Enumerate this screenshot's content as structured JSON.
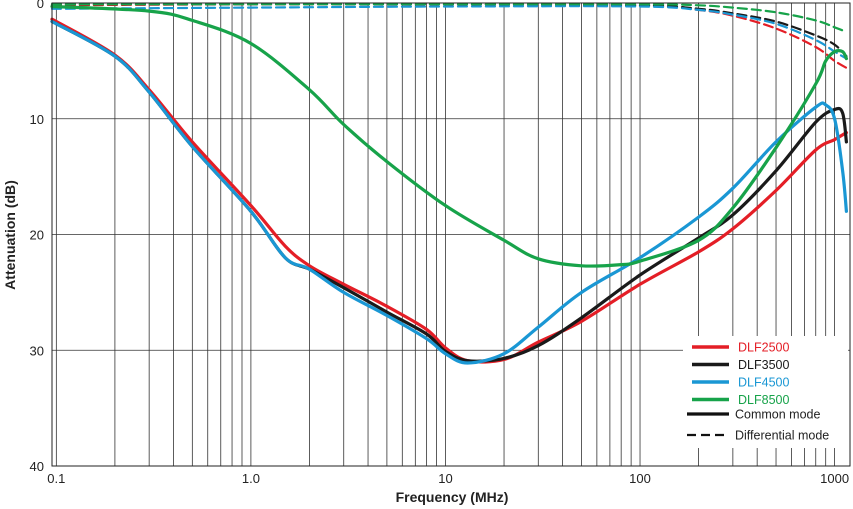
{
  "chart_data": {
    "type": "line",
    "xlabel": "Frequency (MHz)",
    "ylabel": "Attenuation (dB)",
    "x_scale": "log",
    "xlim": [
      0.095,
      1200
    ],
    "ylim": [
      0,
      40
    ],
    "y_inverted": true,
    "grid": true,
    "x_tick_labels": [
      "0.1",
      "1.0",
      "10",
      "100",
      "1000"
    ],
    "x_tick_values": [
      0.1,
      1,
      10,
      100,
      1000
    ],
    "y_tick_labels": [
      "0",
      "10",
      "20",
      "30",
      "40"
    ],
    "y_tick_values": [
      0,
      10,
      20,
      30,
      40
    ],
    "legend_position": "bottom-right",
    "series": [
      {
        "name": "DLF2500",
        "color": "#e41e26",
        "mode": "common",
        "x": [
          0.095,
          0.2,
          0.3,
          0.5,
          1.0,
          1.5,
          2,
          3,
          5,
          8,
          10,
          13,
          20,
          30,
          50,
          100,
          200,
          300,
          500,
          800,
          1000,
          1150
        ],
        "y": [
          1.4,
          4.5,
          7.5,
          12,
          17.5,
          21,
          22.7,
          24.3,
          26.2,
          28.2,
          29.8,
          30.9,
          30.8,
          29.3,
          27.5,
          24.3,
          21.5,
          19.5,
          16.2,
          12.7,
          11.8,
          11.2
        ]
      },
      {
        "name": "DLF3500",
        "color": "#1a1a1a",
        "mode": "common",
        "x": [
          0.095,
          0.2,
          0.3,
          0.5,
          1.0,
          1.5,
          2,
          3,
          5,
          8,
          10,
          13,
          20,
          30,
          50,
          100,
          200,
          300,
          500,
          800,
          1000,
          1100,
          1150
        ],
        "y": [
          1.6,
          4.6,
          7.7,
          12.4,
          18,
          22,
          23,
          24.6,
          26.7,
          28.6,
          30.1,
          30.9,
          30.7,
          29.6,
          27.2,
          23.5,
          20.3,
          18.3,
          14.5,
          10.3,
          9.2,
          9.5,
          12
        ]
      },
      {
        "name": "DLF4500",
        "color": "#1a97d4",
        "mode": "common",
        "x": [
          0.095,
          0.2,
          0.3,
          0.5,
          1.0,
          1.5,
          2,
          3,
          5,
          8,
          10,
          13,
          20,
          30,
          50,
          100,
          200,
          300,
          500,
          800,
          900,
          1000,
          1100,
          1150
        ],
        "y": [
          1.6,
          4.6,
          7.7,
          12.4,
          18,
          22,
          23,
          25,
          27,
          29,
          30.3,
          31.1,
          30.3,
          28,
          25,
          22,
          18.5,
          16,
          12,
          9,
          8.8,
          10,
          14.5,
          18
        ]
      },
      {
        "name": "DLF8500",
        "color": "#17a34a",
        "mode": "common",
        "x": [
          0.095,
          0.3,
          0.5,
          1.0,
          2,
          3,
          5,
          10,
          20,
          30,
          50,
          80,
          100,
          200,
          300,
          500,
          800,
          900,
          1000,
          1100,
          1150
        ],
        "y": [
          0.3,
          0.7,
          1.5,
          3.5,
          7.5,
          10.5,
          13.7,
          17.5,
          20.5,
          22.1,
          22.7,
          22.6,
          22.3,
          20.5,
          17.7,
          12.5,
          7,
          5,
          4.2,
          4.2,
          4.8
        ]
      },
      {
        "name": "DLF2500",
        "color": "#e41e26",
        "mode": "differential",
        "x": [
          0.095,
          1,
          10,
          100,
          200,
          300,
          500,
          800,
          1000,
          1150
        ],
        "y": [
          0.2,
          0.1,
          0.1,
          0.2,
          0.6,
          1.1,
          2.2,
          3.8,
          5.0,
          5.6
        ]
      },
      {
        "name": "DLF3500",
        "color": "#1a1a1a",
        "mode": "differential",
        "x": [
          0.095,
          1,
          10,
          100,
          200,
          300,
          500,
          800,
          1000,
          1150
        ],
        "y": [
          0.1,
          0.1,
          0.1,
          0.2,
          0.5,
          0.9,
          1.6,
          2.8,
          3.6,
          4.6
        ]
      },
      {
        "name": "DLF4500",
        "color": "#1a97d4",
        "mode": "differential",
        "x": [
          0.095,
          1,
          10,
          100,
          200,
          300,
          500,
          800,
          1000,
          1150
        ],
        "y": [
          0.5,
          0.4,
          0.3,
          0.3,
          0.6,
          1.0,
          1.8,
          3.2,
          4.2,
          4.8
        ]
      },
      {
        "name": "DLF8500",
        "color": "#17a34a",
        "mode": "differential",
        "x": [
          0.095,
          1,
          10,
          100,
          200,
          300,
          500,
          800,
          1000,
          1150
        ],
        "y": [
          0.1,
          0.1,
          0.1,
          0.1,
          0.2,
          0.4,
          0.8,
          1.5,
          2.1,
          2.5
        ]
      }
    ],
    "legend": {
      "entries": [
        {
          "label": "DLF2500",
          "color": "#e41e26"
        },
        {
          "label": "DLF3500",
          "color": "#1a1a1a"
        },
        {
          "label": "DLF4500",
          "color": "#1a97d4"
        },
        {
          "label": "DLF8500",
          "color": "#17a34a"
        }
      ],
      "modes": [
        {
          "label": "Common mode",
          "style": "solid"
        },
        {
          "label": "Differential mode",
          "style": "dashed"
        }
      ]
    }
  }
}
